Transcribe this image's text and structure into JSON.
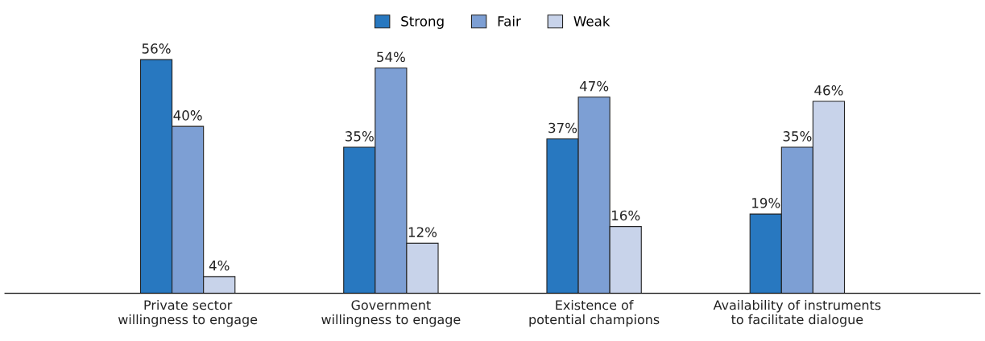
{
  "chart_data": {
    "type": "bar",
    "categories": [
      "Private sector\nwillingness to engage",
      "Government\nwillingness to engage",
      "Existence of\npotential champions",
      "Availability of instruments\nto facilitate dialogue"
    ],
    "series": [
      {
        "name": "Strong",
        "color": "#2878c0",
        "values": [
          56,
          35,
          37,
          19
        ],
        "value_labels": [
          "56%",
          "35%",
          "37%",
          "19%"
        ]
      },
      {
        "name": "Fair",
        "color": "#7d9fd4",
        "values": [
          40,
          54,
          47,
          35
        ],
        "value_labels": [
          "40%",
          "54%",
          "47%",
          "35%"
        ]
      },
      {
        "name": "Weak",
        "color": "#c8d3ea",
        "values": [
          4,
          12,
          16,
          46
        ],
        "value_labels": [
          "4%",
          "12%",
          "16%",
          "46%"
        ]
      }
    ],
    "legend": "top",
    "grid": false
  }
}
